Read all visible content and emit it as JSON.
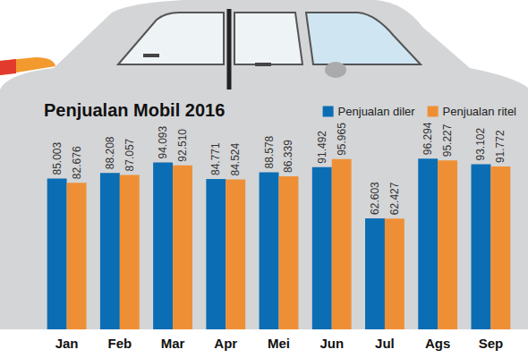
{
  "chart_data": {
    "type": "bar",
    "title": "Penjualan Mobil 2016",
    "categories": [
      "Jan",
      "Feb",
      "Mar",
      "Apr",
      "Mei",
      "Jun",
      "Jul",
      "Ags",
      "Sep"
    ],
    "series": [
      {
        "name": "Penjualan diler",
        "color": "#0b6db3",
        "values": [
          85003,
          88208,
          94093,
          84771,
          88578,
          91492,
          62603,
          96294,
          93102
        ],
        "value_labels": [
          "85.003",
          "88.208",
          "94.093",
          "84.771",
          "88.578",
          "91.492",
          "62.603",
          "96.294",
          "93.102"
        ]
      },
      {
        "name": "Penjualan ritel",
        "color": "#ef8f35",
        "values": [
          82676,
          87057,
          92510,
          84524,
          86339,
          95965,
          62427,
          95227,
          91772
        ],
        "value_labels": [
          "82.676",
          "87.057",
          "92.510",
          "84.524",
          "86.339",
          "95.965",
          "62.427",
          "95.227",
          "91.772"
        ]
      }
    ],
    "ylim": [
      0,
      110000
    ],
    "grid": false,
    "legend": "top-right",
    "data_labels": true,
    "tick_labels": "x"
  }
}
